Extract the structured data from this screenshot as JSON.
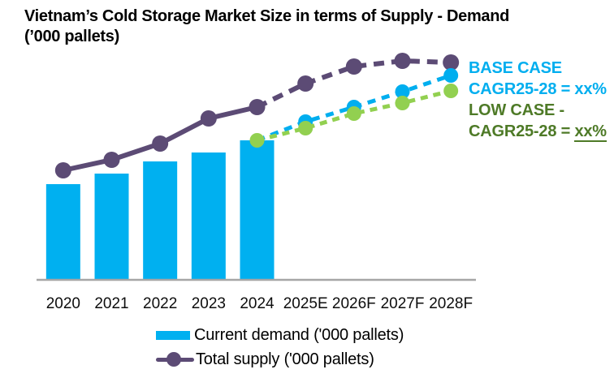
{
  "title": {
    "line1": "Vietnam’s Cold Storage Market Size in terms of Supply - Demand",
    "line2": "(’000 pallets)"
  },
  "annotations": {
    "base_case": {
      "line1": "BASE CASE",
      "line2": "CAGR25-28 = xx%",
      "color": "#00AEEF"
    },
    "low_case": {
      "line1": "LOW CASE -",
      "line2_prefix": "CAGR25-28 = ",
      "line2_underlined": "xx%",
      "color": "#4E7A27"
    }
  },
  "legend": [
    {
      "id": "current-demand",
      "label": "Current demand ('000 pallets)",
      "color": "#00B0F0",
      "swatch": "bar"
    },
    {
      "id": "total-supply",
      "label": "Total supply ('000 pallets)",
      "color": "#5C4B75",
      "swatch": "line-dot"
    }
  ],
  "chart_data": {
    "type": "bar+line combo",
    "title": "Vietnam’s Cold Storage Market Size in terms of Supply - Demand (’000 pallets)",
    "categories": [
      "2020",
      "2021",
      "2022",
      "2023",
      "2024",
      "2025E",
      "2026F",
      "2027F",
      "2028F"
    ],
    "value_units": "'000 pallets — relative scale (no y-axis values shown in chart)",
    "y_axis_visible": false,
    "grid": false,
    "legend_position": "bottom",
    "series": [
      {
        "id": "current-demand",
        "name": "Current demand ('000 pallets)",
        "type": "bar",
        "color": "#00B0F0",
        "style": "solid bars, 2020-2024 only",
        "values": [
          118,
          131,
          146,
          157,
          172,
          null,
          null,
          null,
          null
        ]
      },
      {
        "id": "total-supply",
        "name": "Total supply ('000 pallets)",
        "type": "line",
        "color": "#5C4B75",
        "style": "solid 2020-2024, dashed forecast 2024-2028F, round markers every year",
        "values": [
          135,
          148,
          168,
          199,
          213,
          242,
          263,
          270,
          268
        ],
        "segments": [
          {
            "from": 0,
            "to": 4,
            "dashed": false
          },
          {
            "from": 4,
            "to": 8,
            "dashed": true
          }
        ],
        "marker_indices": [
          0,
          1,
          2,
          3,
          4,
          5,
          6,
          7,
          8
        ]
      },
      {
        "id": "base-case",
        "name": "Base case supply forecast (CAGR25-28 = xx%)",
        "type": "line",
        "color": "#00AEEF",
        "style": "dashed, starts at 2024 demand level",
        "values": [
          null,
          null,
          null,
          null,
          172,
          195,
          213,
          232,
          252
        ],
        "segments": [
          {
            "from": 4,
            "to": 8,
            "dashed": true
          }
        ],
        "marker_indices": [
          5,
          6,
          7,
          8
        ]
      },
      {
        "id": "low-case",
        "name": "Low case supply forecast (CAGR25-28 = xx%)",
        "type": "line",
        "color": "#92D050",
        "style": "dashed, starts at 2024 demand level",
        "values": [
          null,
          null,
          null,
          null,
          172,
          187,
          205,
          218,
          233
        ],
        "segments": [
          {
            "from": 4,
            "to": 8,
            "dashed": true
          }
        ],
        "marker_indices": [
          4,
          5,
          6,
          7,
          8
        ]
      }
    ]
  }
}
